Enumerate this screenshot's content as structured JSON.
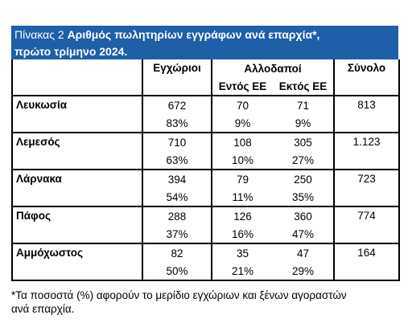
{
  "title": {
    "prefix": "Πίνακας 2",
    "text": "Αριθμός πωλητηρίων εγγράφων ανά επαρχία*,",
    "line2": "πρώτο τρίμηνο 2024."
  },
  "table": {
    "headers": {
      "domestic": "Εγχώριοι",
      "foreign": "Αλλοδαποί",
      "eu": "Εντός ΕΕ",
      "non_eu": "Εκτός ΕΕ",
      "total": "Σύνολο"
    },
    "rows": [
      {
        "name": "Λευκωσία",
        "domestic": "672",
        "domestic_pct": "83%",
        "eu": "70",
        "eu_pct": "9%",
        "non_eu": "71",
        "non_eu_pct": "9%",
        "total": "813"
      },
      {
        "name": "Λεμεσός",
        "domestic": "710",
        "domestic_pct": "63%",
        "eu": "108",
        "eu_pct": "10%",
        "non_eu": "305",
        "non_eu_pct": "27%",
        "total": "1.123"
      },
      {
        "name": "Λάρνακα",
        "domestic": "394",
        "domestic_pct": "54%",
        "eu": "79",
        "eu_pct": "11%",
        "non_eu": "250",
        "non_eu_pct": "35%",
        "total": "723"
      },
      {
        "name": "Πάφος",
        "domestic": "288",
        "domestic_pct": "37%",
        "eu": "126",
        "eu_pct": "16%",
        "non_eu": "360",
        "non_eu_pct": "47%",
        "total": "774"
      },
      {
        "name": "Αμμόχωστος",
        "domestic": "82",
        "domestic_pct": "50%",
        "eu": "35",
        "eu_pct": "21%",
        "non_eu": "47",
        "non_eu_pct": "29%",
        "total": "164"
      }
    ]
  },
  "footnote": [
    "*Τα ποσοστά (%) αφορούν το μερίδιο εγχώριων και ξένων αγοραστών",
    "ανά επαρχία."
  ]
}
